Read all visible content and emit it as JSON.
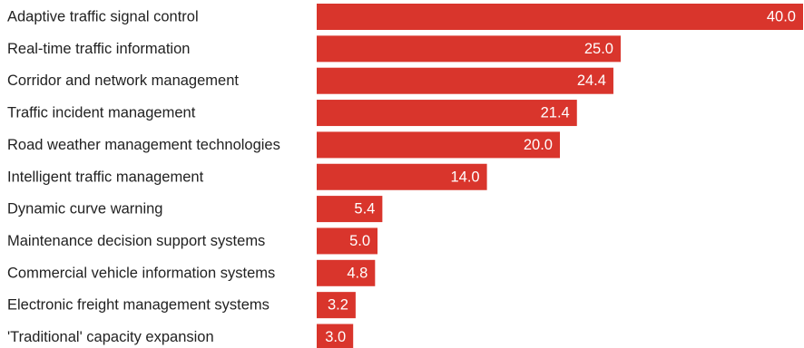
{
  "chart_data": {
    "type": "bar",
    "orientation": "horizontal",
    "categories": [
      "Adaptive traffic signal control",
      "Real-time traffic information",
      "Corridor and network management",
      "Traffic incident management",
      "Road weather management technologies",
      "Intelligent traffic management",
      "Dynamic curve warning",
      "Maintenance decision support systems",
      "Commercial vehicle information systems",
      "Electronic freight management systems",
      "'Traditional' capacity expansion"
    ],
    "values": [
      40.0,
      25.0,
      24.4,
      21.4,
      20.0,
      14.0,
      5.4,
      5.0,
      4.8,
      3.2,
      3.0
    ],
    "value_labels": [
      "40.0",
      "25.0",
      "24.4",
      "21.4",
      "20.0",
      "14.0",
      "5.4",
      "5.0",
      "4.8",
      "3.2",
      "3.0"
    ],
    "title": "",
    "xlabel": "",
    "ylabel": "",
    "xlim": [
      0,
      40
    ],
    "grid": false,
    "legend": "none",
    "bar_color": "#d9352c"
  }
}
